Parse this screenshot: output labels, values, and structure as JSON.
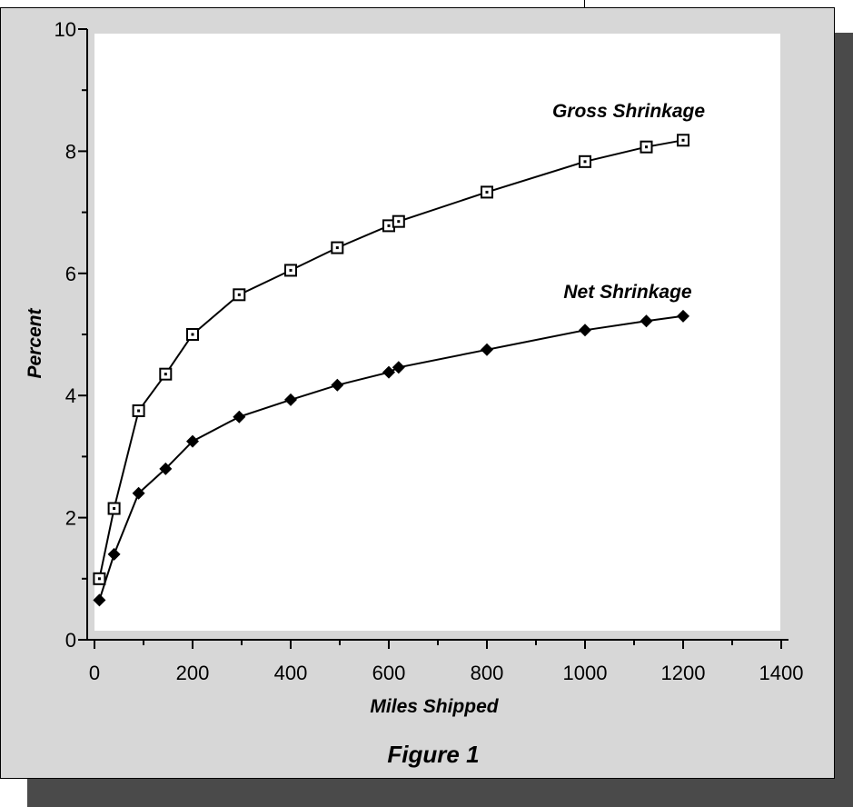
{
  "chart_data": {
    "type": "line",
    "title": "",
    "caption": "Figure 1",
    "xlabel": "Miles Shipped",
    "ylabel": "Percent",
    "xlim": [
      0,
      1400
    ],
    "ylim": [
      0,
      10
    ],
    "x_ticks": [
      0,
      200,
      400,
      600,
      800,
      1000,
      1200,
      1400
    ],
    "y_ticks": [
      0,
      2,
      4,
      6,
      8,
      10
    ],
    "grid": false,
    "legend": "none",
    "series": [
      {
        "name": "Gross Shrinkage",
        "marker": "open-square",
        "color": "#000000",
        "points": [
          [
            10,
            1.0
          ],
          [
            40,
            2.15
          ],
          [
            90,
            3.75
          ],
          [
            145,
            4.35
          ],
          [
            200,
            5.0
          ],
          [
            295,
            5.65
          ],
          [
            400,
            6.05
          ],
          [
            495,
            6.42
          ],
          [
            600,
            6.78
          ],
          [
            620,
            6.85
          ],
          [
            800,
            7.33
          ],
          [
            1000,
            7.83
          ],
          [
            1125,
            8.07
          ],
          [
            1200,
            8.18
          ]
        ]
      },
      {
        "name": "Net Shrinkage",
        "marker": "filled-diamond",
        "color": "#000000",
        "points": [
          [
            10,
            0.65
          ],
          [
            40,
            1.4
          ],
          [
            90,
            2.4
          ],
          [
            145,
            2.8
          ],
          [
            200,
            3.25
          ],
          [
            295,
            3.65
          ],
          [
            400,
            3.93
          ],
          [
            495,
            4.17
          ],
          [
            600,
            4.38
          ],
          [
            620,
            4.46
          ],
          [
            800,
            4.75
          ],
          [
            1000,
            5.07
          ],
          [
            1125,
            5.22
          ],
          [
            1200,
            5.3
          ]
        ]
      }
    ]
  },
  "colors": {
    "frame_fill": "#d7d7d7",
    "frame_shadow": "#4a4a4a",
    "plot_fill": "#ffffff",
    "plot_shadow": "#d7d7d7",
    "ink": "#000000"
  }
}
